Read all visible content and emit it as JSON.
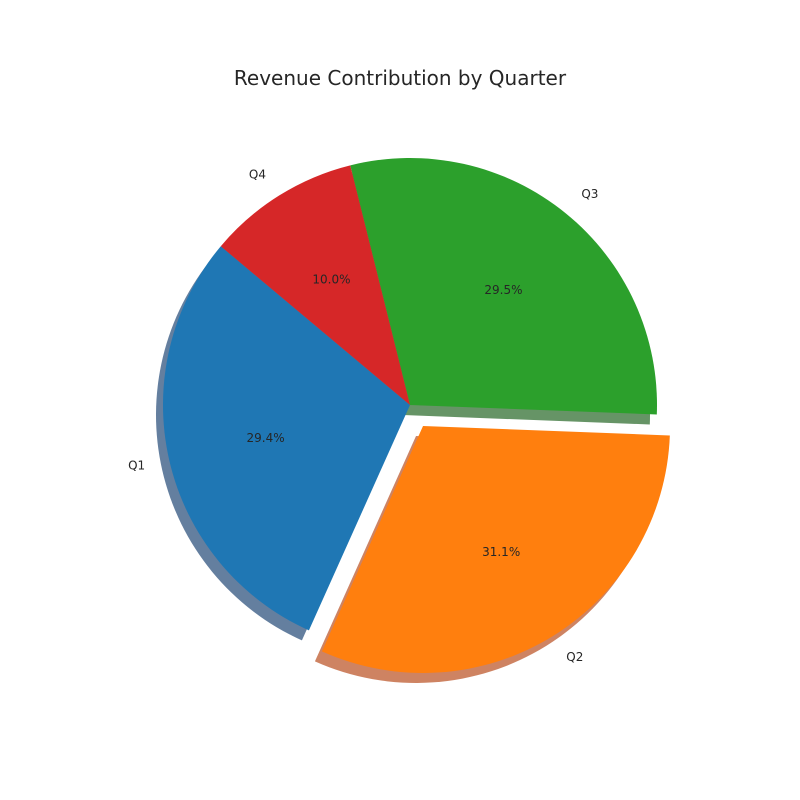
{
  "chart_data": {
    "type": "pie",
    "title": "Revenue Contribution by Quarter",
    "categories": [
      "Q1",
      "Q2",
      "Q3",
      "Q4"
    ],
    "values": [
      29.4,
      31.1,
      29.5,
      10.0
    ],
    "percent_labels": [
      "29.4%",
      "31.1%",
      "29.5%",
      "10.0%"
    ],
    "colors": [
      "#1f77b4",
      "#ff7f0e",
      "#2ca02c",
      "#d62728"
    ],
    "exploded": [
      false,
      true,
      false,
      false
    ],
    "shadow": true,
    "start_angle_deg": 140,
    "direction": "counterclockwise"
  }
}
